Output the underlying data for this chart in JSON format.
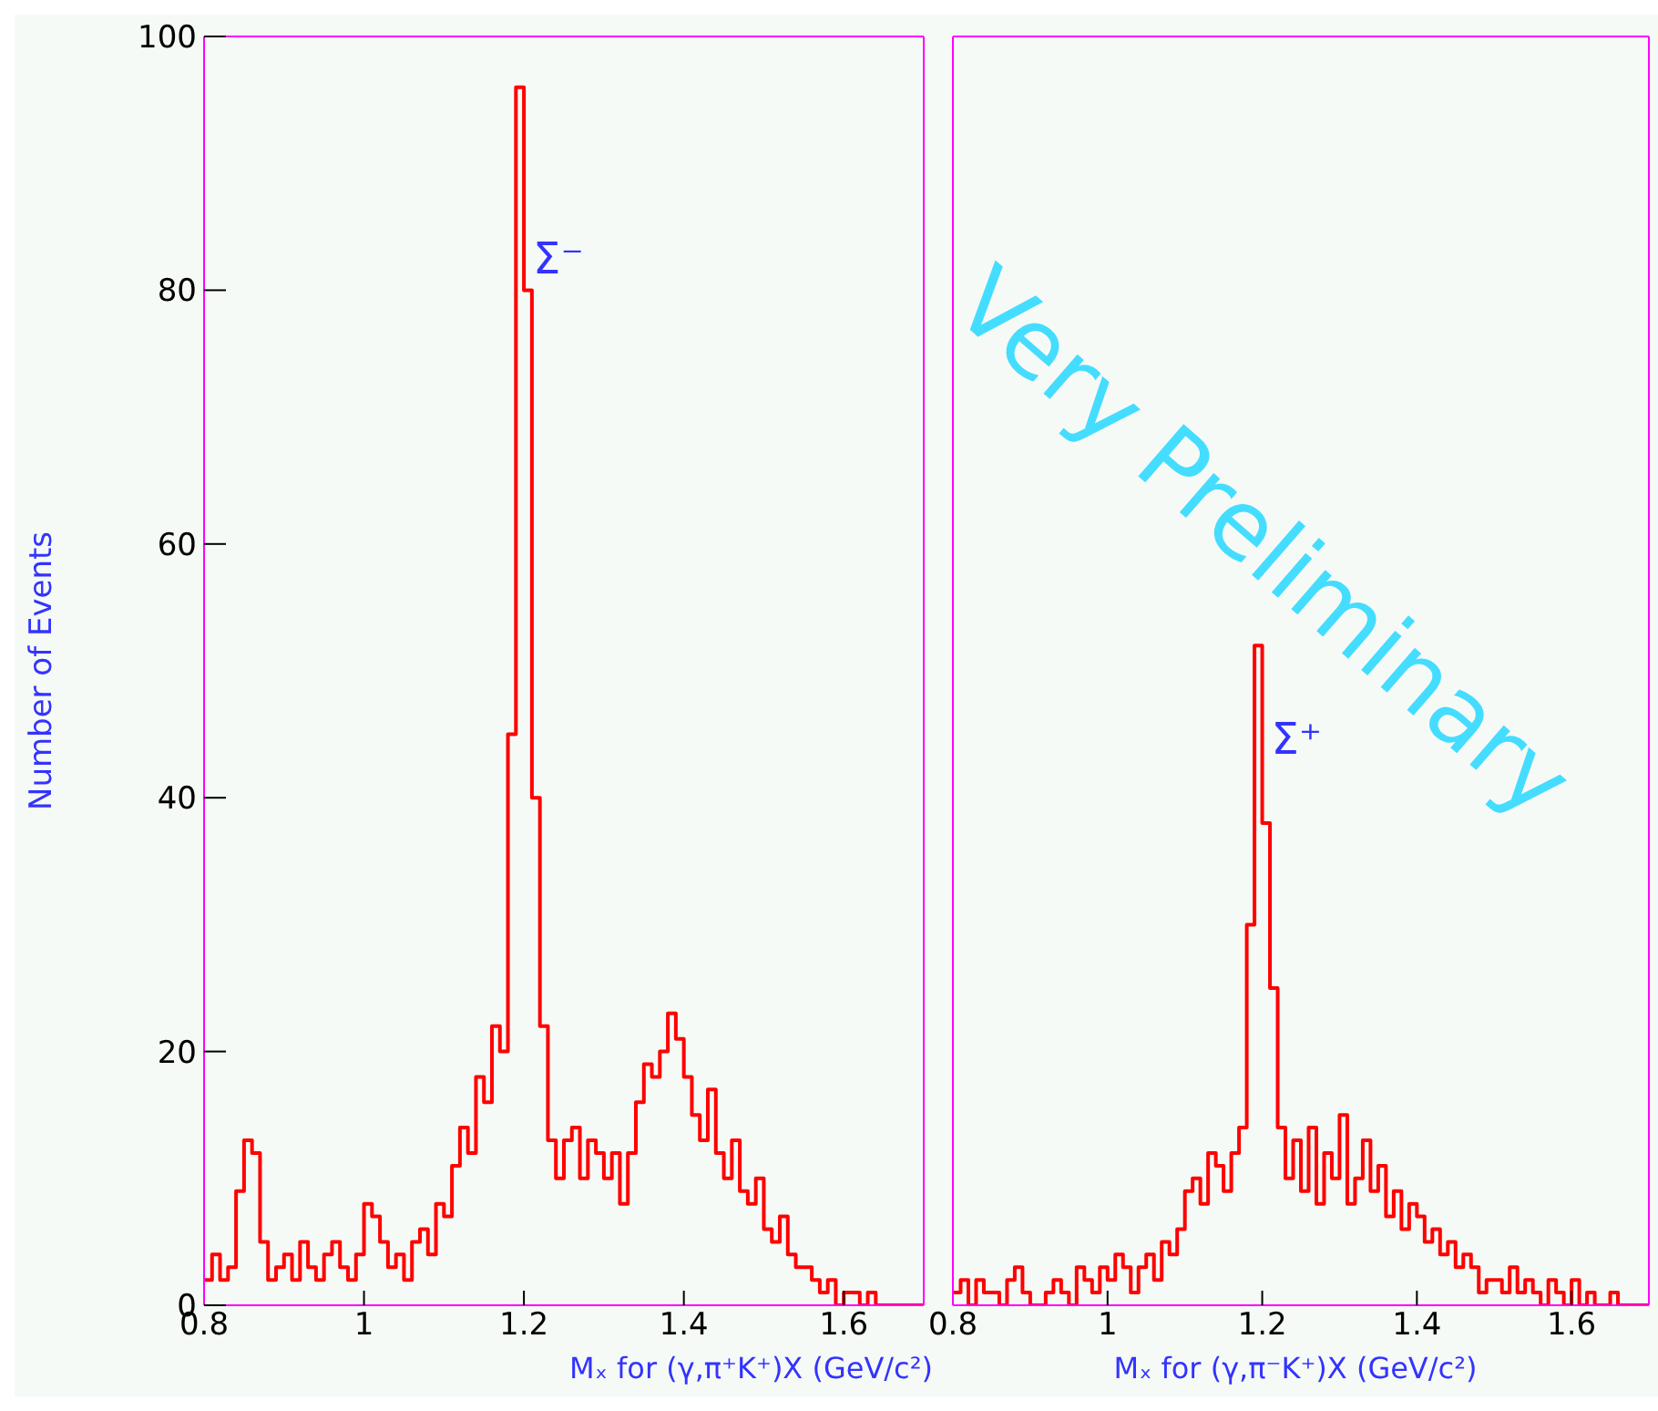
{
  "chart_data": [
    {
      "type": "histogram",
      "ylabel": "Number of Events",
      "xlabel": "Mₓ for (γ,π⁺K⁺)X (GeV/c²)",
      "color": "#ff0000",
      "bins": [
        0.8,
        0.81,
        0.82,
        0.83,
        0.84,
        0.85,
        0.86,
        0.87,
        0.88,
        0.89,
        0.9,
        0.91,
        0.92,
        0.93,
        0.94,
        0.95,
        0.96,
        0.97,
        0.98,
        0.99,
        1.0,
        1.01,
        1.02,
        1.03,
        1.04,
        1.05,
        1.06,
        1.07,
        1.08,
        1.09,
        1.1,
        1.11,
        1.12,
        1.13,
        1.14,
        1.15,
        1.16,
        1.17,
        1.18,
        1.19,
        1.2,
        1.21,
        1.22,
        1.23,
        1.24,
        1.25,
        1.26,
        1.27,
        1.28,
        1.29,
        1.3,
        1.31,
        1.32,
        1.33,
        1.34,
        1.35,
        1.36,
        1.37,
        1.38,
        1.39,
        1.4,
        1.41,
        1.42,
        1.43,
        1.44,
        1.45,
        1.46,
        1.47,
        1.48,
        1.49,
        1.5,
        1.51,
        1.52,
        1.53,
        1.54,
        1.55,
        1.56,
        1.57,
        1.58,
        1.59,
        1.6,
        1.61,
        1.62,
        1.63,
        1.64,
        1.65,
        1.66,
        1.67,
        1.68,
        1.69,
        1.7
      ],
      "values": [
        2,
        4,
        2,
        3,
        9,
        13,
        12,
        5,
        2,
        3,
        4,
        2,
        5,
        3,
        2,
        4,
        5,
        3,
        2,
        4,
        8,
        7,
        5,
        3,
        4,
        2,
        5,
        6,
        4,
        8,
        7,
        11,
        14,
        12,
        18,
        16,
        22,
        20,
        45,
        96,
        80,
        40,
        22,
        13,
        10,
        13,
        14,
        10,
        13,
        12,
        10,
        12,
        8,
        12,
        16,
        19,
        18,
        20,
        23,
        21,
        18,
        15,
        13,
        17,
        12,
        10,
        13,
        9,
        8,
        10,
        6,
        5,
        7,
        4,
        3,
        3,
        2,
        1,
        2,
        0,
        1,
        1,
        0,
        1,
        0,
        0,
        0,
        0,
        0,
        0
      ],
      "xlim": [
        0.8,
        1.7
      ],
      "xticks": [
        0.8,
        1,
        1.2,
        1.4,
        1.6
      ],
      "ylim": [
        0,
        100
      ],
      "yticks": [
        0,
        20,
        40,
        60,
        80,
        100
      ],
      "annotations": [
        "Σ⁻"
      ]
    },
    {
      "type": "histogram",
      "xlabel": "Mₓ for (γ,π⁻K⁺)X (GeV/c²)",
      "color": "#ff0000",
      "bins": [
        0.8,
        0.81,
        0.82,
        0.83,
        0.84,
        0.85,
        0.86,
        0.87,
        0.88,
        0.89,
        0.9,
        0.91,
        0.92,
        0.93,
        0.94,
        0.95,
        0.96,
        0.97,
        0.98,
        0.99,
        1.0,
        1.01,
        1.02,
        1.03,
        1.04,
        1.05,
        1.06,
        1.07,
        1.08,
        1.09,
        1.1,
        1.11,
        1.12,
        1.13,
        1.14,
        1.15,
        1.16,
        1.17,
        1.18,
        1.19,
        1.2,
        1.21,
        1.22,
        1.23,
        1.24,
        1.25,
        1.26,
        1.27,
        1.28,
        1.29,
        1.3,
        1.31,
        1.32,
        1.33,
        1.34,
        1.35,
        1.36,
        1.37,
        1.38,
        1.39,
        1.4,
        1.41,
        1.42,
        1.43,
        1.44,
        1.45,
        1.46,
        1.47,
        1.48,
        1.49,
        1.5,
        1.51,
        1.52,
        1.53,
        1.54,
        1.55,
        1.56,
        1.57,
        1.58,
        1.59,
        1.6,
        1.61,
        1.62,
        1.63,
        1.64,
        1.65,
        1.66,
        1.67,
        1.68,
        1.69,
        1.7
      ],
      "values": [
        1,
        2,
        0,
        2,
        1,
        1,
        0,
        2,
        3,
        1,
        0,
        0,
        1,
        2,
        1,
        0,
        3,
        2,
        1,
        3,
        2,
        4,
        3,
        1,
        3,
        4,
        2,
        5,
        4,
        6,
        9,
        10,
        8,
        12,
        11,
        9,
        12,
        14,
        30,
        52,
        38,
        25,
        14,
        10,
        13,
        9,
        14,
        8,
        12,
        10,
        15,
        8,
        10,
        13,
        9,
        11,
        7,
        9,
        6,
        8,
        7,
        5,
        6,
        4,
        5,
        3,
        4,
        3,
        1,
        2,
        2,
        1,
        3,
        1,
        2,
        1,
        0,
        2,
        1,
        0,
        2,
        0,
        1,
        0,
        0,
        1,
        0,
        0,
        0,
        0
      ],
      "xlim": [
        0.8,
        1.7
      ],
      "xticks": [
        0.8,
        1,
        1.2,
        1.4,
        1.6
      ],
      "ylim": [
        0,
        100
      ],
      "yticks": [
        0,
        20,
        40,
        60,
        80,
        100
      ],
      "tick_labels": "x",
      "annotations": [
        "Σ⁺",
        "Very Preliminary"
      ]
    }
  ]
}
